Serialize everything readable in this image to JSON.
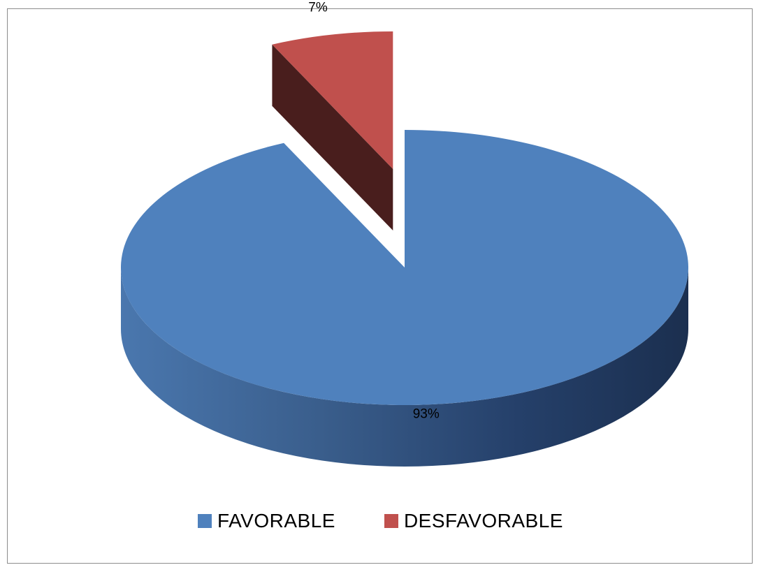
{
  "chart_data": {
    "type": "pie",
    "title": "",
    "three_d": true,
    "legend_position": "bottom",
    "slices": [
      {
        "name": "FAVORABLE",
        "value": 93,
        "label": "93%",
        "color": "#4F81BD",
        "exploded": false
      },
      {
        "name": "DESFAVORABLE",
        "value": 7,
        "label": "7%",
        "color": "#C0504D",
        "exploded": true
      }
    ]
  }
}
